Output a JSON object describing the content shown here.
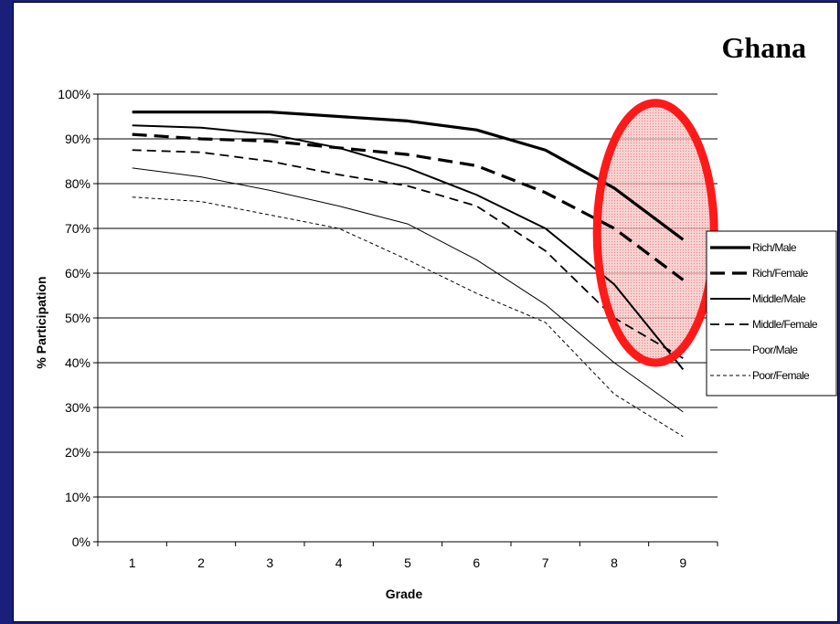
{
  "chart_data": {
    "type": "line",
    "title": "Ghana",
    "xlabel": "Grade",
    "ylabel": "% Participation",
    "x": [
      1,
      2,
      3,
      4,
      5,
      6,
      7,
      8,
      9
    ],
    "ylim": [
      0,
      100
    ],
    "yticks": [
      "0%",
      "10%",
      "20%",
      "30%",
      "40%",
      "50%",
      "60%",
      "70%",
      "80%",
      "90%",
      "100%"
    ],
    "grid": "horizontal",
    "legend_position": "right",
    "series": [
      {
        "name": "Rich/Male",
        "values": [
          96,
          96,
          96,
          95,
          94,
          92,
          87.5,
          79,
          67.5
        ]
      },
      {
        "name": "Rich/Female",
        "values": [
          91,
          90,
          89.5,
          88,
          86.5,
          84,
          78,
          70,
          58.5
        ]
      },
      {
        "name": "Middle/Male",
        "values": [
          93,
          92.5,
          91,
          88,
          83.5,
          77.5,
          70,
          57.5,
          38.5
        ]
      },
      {
        "name": "Middle/Female",
        "values": [
          87.5,
          87,
          85,
          82,
          79.5,
          75,
          65,
          50,
          41
        ]
      },
      {
        "name": "Poor/Male",
        "values": [
          83.5,
          81.5,
          78.5,
          75,
          71,
          63,
          53,
          40,
          29
        ]
      },
      {
        "name": "Poor/Female",
        "values": [
          77,
          76,
          73,
          70,
          63,
          55.5,
          49,
          33,
          23.5
        ]
      }
    ],
    "highlight": {
      "shape": "ellipse",
      "x_range": [
        7.75,
        9.45
      ],
      "y_range": [
        40,
        98
      ],
      "stroke_color": "#ff1a1a",
      "fill_color": "#f4a6a6"
    }
  }
}
